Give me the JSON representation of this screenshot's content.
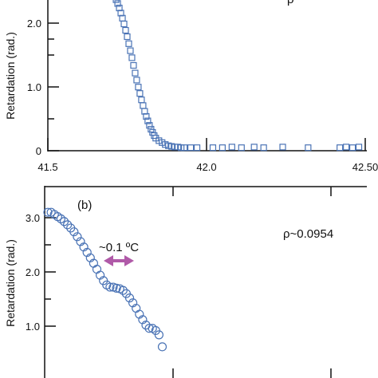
{
  "chart_data": [
    {
      "type": "scatter",
      "marker": "square",
      "marker_color": "#4a73b5",
      "ylabel": "Retardation (rad.)",
      "xlim": [
        41.5,
        42.5
      ],
      "ylim": [
        0,
        3.0
      ],
      "x_tick_labels": [
        "41.5",
        "42.0",
        "42.50"
      ],
      "y_tick_labels": [
        "0",
        "1.0",
        "2.0"
      ],
      "annotation": "ρ~",
      "points": {
        "x": [
          41.69,
          41.7,
          41.71,
          41.715,
          41.72,
          41.725,
          41.73,
          41.735,
          41.74,
          41.745,
          41.75,
          41.755,
          41.76,
          41.765,
          41.77,
          41.775,
          41.78,
          41.785,
          41.79,
          41.795,
          41.8,
          41.805,
          41.81,
          41.815,
          41.82,
          41.825,
          41.83,
          41.835,
          41.84,
          41.85,
          41.86,
          41.87,
          41.88,
          41.89,
          41.9,
          41.91,
          41.92,
          41.93,
          41.95,
          41.97,
          42.02,
          42.05,
          42.08,
          42.11,
          42.15,
          42.18,
          42.24,
          42.32,
          42.42,
          42.44,
          42.46,
          42.48
        ],
        "y": [
          2.45,
          2.42,
          2.38,
          2.33,
          2.27,
          2.2,
          2.12,
          2.04,
          1.95,
          1.85,
          1.75,
          1.64,
          1.53,
          1.42,
          1.3,
          1.18,
          1.07,
          0.96,
          0.86,
          0.76,
          0.67,
          0.58,
          0.5,
          0.43,
          0.36,
          0.3,
          0.25,
          0.2,
          0.16,
          0.12,
          0.09,
          0.06,
          0.04,
          0.03,
          0.02,
          0.02,
          0.01,
          0.01,
          0.01,
          0.01,
          0.01,
          0.01,
          0.02,
          0.01,
          0.02,
          0.01,
          0.02,
          0.01,
          0.01,
          0.02,
          0.01,
          0.02
        ]
      }
    },
    {
      "type": "scatter",
      "marker": "circle",
      "marker_color": "#4a73b5",
      "panel_label": "(b)",
      "ylabel": "Retardation (rad.)",
      "ylim": [
        0.4,
        3.2
      ],
      "y_tick_labels": [
        "1.0",
        "2.0",
        "3.0"
      ],
      "annotation": "ρ~0.0954",
      "arrow_label": "~0.1 ºC",
      "arrow_color": "#b05aa8",
      "points": {
        "x": [
          0,
          1,
          2,
          3,
          4,
          5,
          6,
          7,
          8,
          9,
          10,
          11,
          12,
          13,
          14,
          15,
          16,
          17,
          18,
          19,
          20,
          21,
          22,
          23,
          24,
          25,
          26,
          27,
          28,
          29,
          30,
          31,
          32,
          33,
          34,
          35
        ],
        "y": [
          3.1,
          3.1,
          3.06,
          3.02,
          2.98,
          2.93,
          2.87,
          2.81,
          2.74,
          2.65,
          2.56,
          2.46,
          2.36,
          2.26,
          2.16,
          2.05,
          1.94,
          1.84,
          1.76,
          1.72,
          1.72,
          1.7,
          1.69,
          1.66,
          1.6,
          1.52,
          1.43,
          1.33,
          1.22,
          1.12,
          1.02,
          0.96,
          0.96,
          0.92,
          0.84,
          0.62
        ]
      }
    }
  ]
}
